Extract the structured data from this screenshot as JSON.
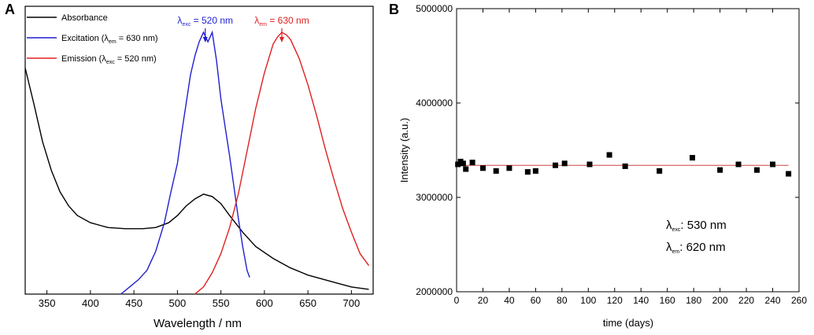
{
  "chart_data": [
    {
      "panel": "A",
      "type": "line",
      "title": "",
      "xlabel": "Wavelength / nm",
      "ylabel": "",
      "xlim": [
        325,
        725
      ],
      "ylim": [
        0,
        1.15
      ],
      "x_ticks": [
        350,
        400,
        450,
        500,
        550,
        600,
        650,
        700
      ],
      "legend": {
        "position": "top-left",
        "entries": [
          {
            "name": "Absorbance",
            "color": "#000000",
            "main": "Absorbance",
            "sub": "",
            "suffix": ""
          },
          {
            "name": "Excitation",
            "color": "#1f1fd0",
            "main": "Excitation (λ",
            "sub": "em",
            "suffix": " = 630 nm)"
          },
          {
            "name": "Emission",
            "color": "#e02020",
            "main": "Emission (λ",
            "sub": "exc",
            "suffix": " = 520 nm)"
          }
        ]
      },
      "annotations": [
        {
          "main": "λ",
          "sub": "exc",
          "suffix": " = 520 nm",
          "color": "#1f1fd0",
          "x": 532
        },
        {
          "main": "λ",
          "sub": "em",
          "suffix": " = 630 nm",
          "color": "#e02020",
          "x": 620
        }
      ],
      "series": [
        {
          "name": "Absorbance",
          "color": "#000000",
          "x": [
            325,
            335,
            345,
            355,
            365,
            375,
            385,
            400,
            420,
            440,
            460,
            475,
            490,
            500,
            510,
            520,
            530,
            540,
            550,
            560,
            575,
            590,
            610,
            630,
            650,
            680,
            700,
            720
          ],
          "y": [
            0.95,
            0.8,
            0.64,
            0.52,
            0.43,
            0.37,
            0.33,
            0.3,
            0.28,
            0.275,
            0.275,
            0.28,
            0.3,
            0.33,
            0.37,
            0.4,
            0.42,
            0.41,
            0.38,
            0.33,
            0.26,
            0.2,
            0.15,
            0.11,
            0.08,
            0.05,
            0.03,
            0.02
          ]
        },
        {
          "name": "Excitation",
          "color": "#1f1fd0",
          "x": [
            435,
            445,
            455,
            465,
            475,
            485,
            492,
            500,
            505,
            510,
            515,
            520,
            525,
            530,
            535,
            540,
            545,
            550,
            555,
            560,
            565,
            570,
            575,
            580,
            583
          ],
          "y": [
            0.0,
            0.03,
            0.06,
            0.1,
            0.18,
            0.3,
            0.42,
            0.55,
            0.68,
            0.8,
            0.92,
            1.0,
            1.06,
            1.1,
            1.06,
            1.1,
            0.98,
            0.82,
            0.7,
            0.58,
            0.45,
            0.32,
            0.2,
            0.1,
            0.07
          ]
        },
        {
          "name": "Emission",
          "color": "#e02020",
          "x": [
            520,
            530,
            540,
            550,
            560,
            570,
            580,
            590,
            600,
            610,
            615,
            620,
            625,
            630,
            640,
            650,
            660,
            670,
            680,
            690,
            700,
            710,
            720
          ],
          "y": [
            0.0,
            0.03,
            0.09,
            0.17,
            0.28,
            0.42,
            0.6,
            0.78,
            0.93,
            1.05,
            1.08,
            1.1,
            1.09,
            1.07,
            0.99,
            0.88,
            0.75,
            0.61,
            0.48,
            0.36,
            0.26,
            0.17,
            0.12
          ]
        }
      ]
    },
    {
      "panel": "B",
      "type": "scatter",
      "title": "",
      "xlabel": "time (days)",
      "ylabel": "Intensity (a.u.)",
      "xlim": [
        0,
        260
      ],
      "ylim": [
        2000000,
        5000000
      ],
      "x_ticks": [
        0,
        20,
        40,
        60,
        80,
        100,
        120,
        140,
        160,
        180,
        200,
        220,
        240,
        260
      ],
      "y_ticks": [
        2000000,
        3000000,
        4000000,
        5000000
      ],
      "grid": false,
      "reference_line": {
        "y": 3340000,
        "color": "#d04040"
      },
      "annotations": [
        {
          "main": "λ",
          "sub": "exc",
          "suffix": ": 530 nm"
        },
        {
          "main": "λ",
          "sub": "em",
          "suffix": ": 620 nm"
        }
      ],
      "series": [
        {
          "name": "Intensity",
          "color": "#000000",
          "x": [
            1,
            3,
            5,
            7,
            12,
            20,
            30,
            40,
            54,
            60,
            75,
            82,
            101,
            116,
            128,
            154,
            179,
            200,
            214,
            228,
            240,
            252
          ],
          "y": [
            3350000,
            3380000,
            3360000,
            3300000,
            3370000,
            3310000,
            3280000,
            3310000,
            3270000,
            3280000,
            3340000,
            3360000,
            3350000,
            3450000,
            3330000,
            3280000,
            3420000,
            3290000,
            3350000,
            3290000,
            3350000,
            3250000
          ]
        }
      ]
    }
  ]
}
